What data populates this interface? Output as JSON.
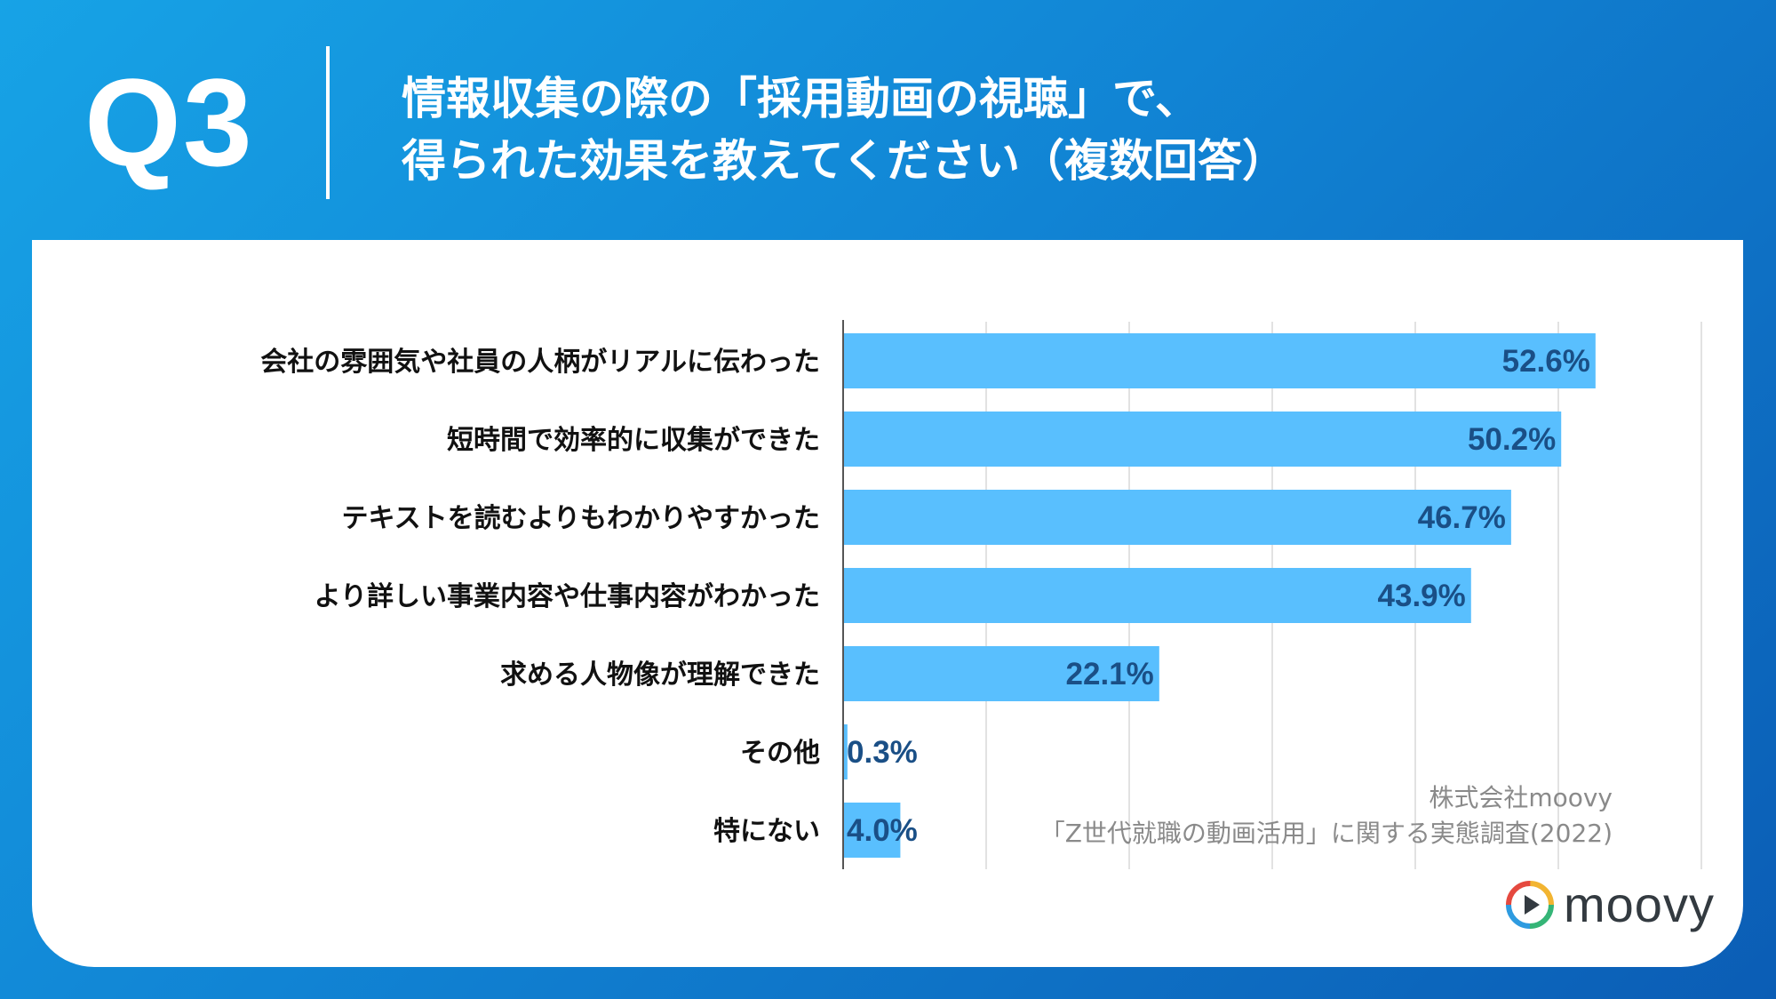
{
  "header": {
    "q_label": "Q3",
    "title_line1": "情報収集の際の「採用動画の視聴」で、",
    "title_line2": "得られた効果を教えてください（複数回答）"
  },
  "chart_data": {
    "type": "bar",
    "orientation": "horizontal",
    "categories": [
      "会社の雰囲気や社員の人柄がリアルに伝わった",
      "短時間で効率的に収集ができた",
      "テキストを読むよりもわかりやすかった",
      "より詳しい事業内容や仕事内容がわかった",
      "求める人物像が理解できた",
      "その他",
      "特にない"
    ],
    "values": [
      52.6,
      50.2,
      46.7,
      43.9,
      22.1,
      0.3,
      4.0
    ],
    "value_labels": [
      "52.6%",
      "50.2%",
      "46.7%",
      "43.9%",
      "22.1%",
      "0.3%",
      "4.0%"
    ],
    "xlim": [
      0,
      60
    ],
    "grid": true,
    "bar_color": "#59bffe",
    "label_color": "#1a4f86"
  },
  "source": {
    "line1": "株式会社moovy",
    "line2": "「Z世代就職の動画活用」に関する実態調査(2022)"
  },
  "logo": {
    "text": "moovy",
    "icon": "play-circle-icon"
  }
}
